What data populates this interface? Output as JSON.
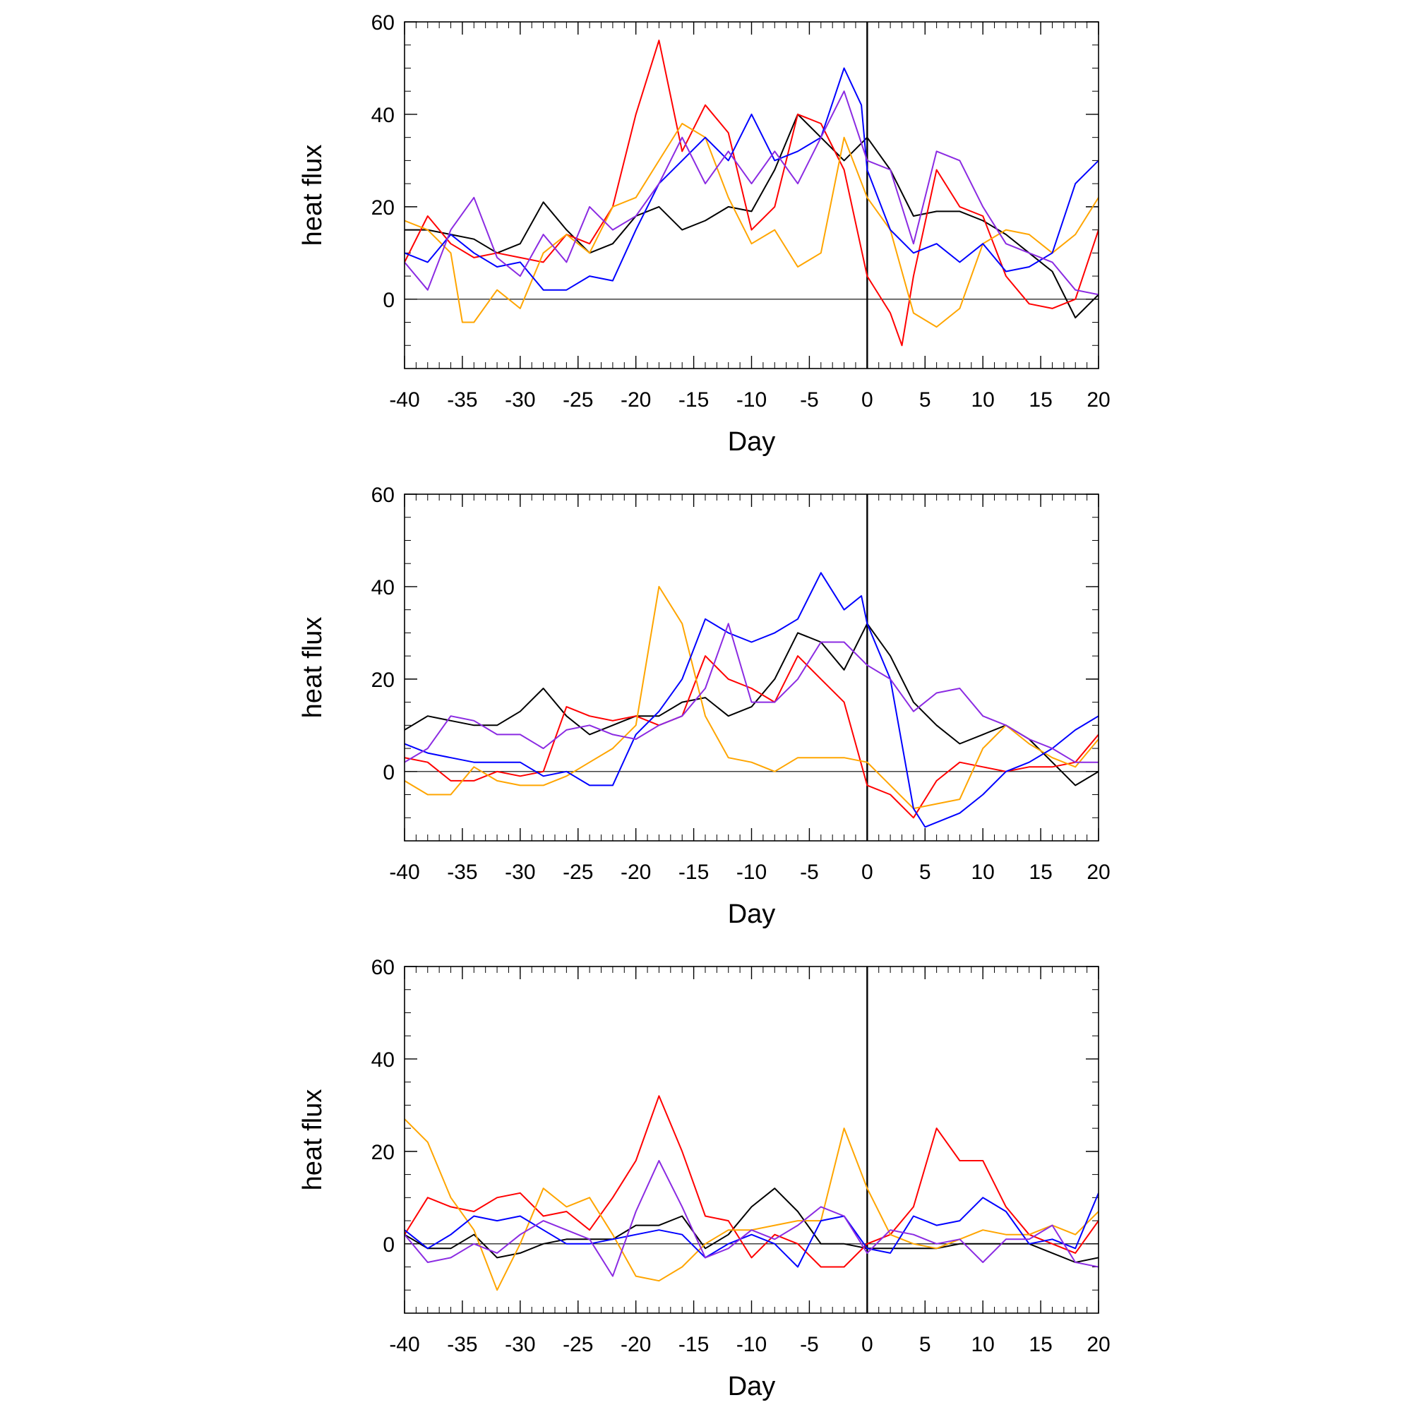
{
  "chart_data": [
    {
      "type": "line",
      "panel": "top",
      "xlabel": "Day",
      "ylabel": "heat flux",
      "xlim": [
        -40,
        20
      ],
      "ylim": [
        -15,
        60
      ],
      "xticks": [
        -40,
        -35,
        -30,
        -25,
        -20,
        -15,
        -10,
        -5,
        0,
        5,
        10,
        15,
        20
      ],
      "xtick_labels": [
        "-40",
        "-35",
        "-30",
        "-25",
        "-20",
        "-15",
        "-10",
        "-5",
        "0",
        "5",
        "10",
        "15",
        "20"
      ],
      "yticks": [
        0,
        20,
        40,
        60
      ],
      "ytick_labels": [
        "0",
        "20",
        "40",
        "60"
      ],
      "reference_lines": {
        "y": 0,
        "x": 0
      },
      "grid": false,
      "series": [
        {
          "color": "#000000",
          "x": [
            -40,
            -38,
            -36,
            -34,
            -32,
            -30,
            -28,
            -26,
            -24,
            -22,
            -20,
            -18,
            -16,
            -14,
            -12,
            -10,
            -8,
            -6,
            -4,
            -2,
            0,
            2,
            4,
            6,
            8,
            10,
            12,
            14,
            16,
            18,
            20
          ],
          "y": [
            15,
            15,
            14,
            13,
            10,
            12,
            21,
            15,
            10,
            12,
            18,
            20,
            15,
            17,
            20,
            19,
            28,
            40,
            35,
            30,
            35,
            28,
            18,
            19,
            19,
            17,
            14,
            10,
            6,
            -4,
            1
          ]
        },
        {
          "color": "#ff0000",
          "x": [
            -40,
            -38,
            -36,
            -34,
            -32,
            -30,
            -28,
            -26,
            -24,
            -22,
            -20,
            -18,
            -16,
            -14,
            -12,
            -10,
            -8,
            -6,
            -4,
            -2,
            0,
            2,
            3,
            4,
            6,
            8,
            10,
            12,
            14,
            16,
            18,
            20
          ],
          "y": [
            8,
            18,
            12,
            9,
            10,
            9,
            8,
            14,
            12,
            20,
            40,
            56,
            32,
            42,
            36,
            15,
            20,
            40,
            38,
            28,
            5,
            -3,
            -10,
            5,
            28,
            20,
            18,
            5,
            -1,
            -2,
            0,
            15
          ]
        },
        {
          "color": "#ffa500",
          "x": [
            -40,
            -38,
            -36,
            -35,
            -34,
            -32,
            -30,
            -28,
            -26,
            -24,
            -22,
            -20,
            -18,
            -16,
            -14,
            -12,
            -10,
            -8,
            -6,
            -4,
            -2,
            0,
            2,
            4,
            6,
            8,
            10,
            12,
            14,
            16,
            18,
            20
          ],
          "y": [
            17,
            15,
            10,
            -5,
            -5,
            2,
            -2,
            10,
            14,
            10,
            20,
            22,
            30,
            38,
            35,
            22,
            12,
            15,
            7,
            10,
            35,
            22,
            15,
            -3,
            -6,
            -2,
            12,
            15,
            14,
            10,
            14,
            22
          ]
        },
        {
          "color": "#0000ff",
          "x": [
            -40,
            -38,
            -36,
            -34,
            -32,
            -30,
            -28,
            -26,
            -24,
            -22,
            -20,
            -18,
            -16,
            -14,
            -12,
            -10,
            -8,
            -6,
            -4,
            -2,
            -0.5,
            0,
            2,
            4,
            6,
            8,
            10,
            12,
            14,
            16,
            18,
            20
          ],
          "y": [
            10,
            8,
            14,
            10,
            7,
            8,
            2,
            2,
            5,
            4,
            15,
            25,
            30,
            35,
            30,
            40,
            30,
            32,
            35,
            50,
            42,
            28,
            15,
            10,
            12,
            8,
            12,
            6,
            7,
            10,
            25,
            30
          ]
        },
        {
          "color": "#8b2be2",
          "x": [
            -40,
            -38,
            -36,
            -34,
            -32,
            -30,
            -28,
            -26,
            -24,
            -22,
            -20,
            -18,
            -16,
            -14,
            -12,
            -10,
            -8,
            -6,
            -4,
            -2,
            0,
            2,
            4,
            6,
            8,
            10,
            12,
            14,
            16,
            18,
            20
          ],
          "y": [
            8,
            2,
            15,
            22,
            9,
            5,
            14,
            8,
            20,
            15,
            18,
            25,
            35,
            25,
            32,
            25,
            32,
            25,
            35,
            45,
            30,
            28,
            12,
            32,
            30,
            20,
            12,
            10,
            8,
            2,
            1
          ]
        }
      ]
    },
    {
      "type": "line",
      "panel": "middle",
      "xlabel": "Day",
      "ylabel": "heat flux",
      "xlim": [
        -40,
        20
      ],
      "ylim": [
        -15,
        60
      ],
      "xticks": [
        -40,
        -35,
        -30,
        -25,
        -20,
        -15,
        -10,
        -5,
        0,
        5,
        10,
        15,
        20
      ],
      "xtick_labels": [
        "-40",
        "-35",
        "-30",
        "-25",
        "-20",
        "-15",
        "-10",
        "-5",
        "0",
        "5",
        "10",
        "15",
        "20"
      ],
      "yticks": [
        0,
        20,
        40,
        60
      ],
      "ytick_labels": [
        "0",
        "20",
        "40",
        "60"
      ],
      "reference_lines": {
        "y": 0,
        "x": 0
      },
      "grid": false,
      "series": [
        {
          "color": "#000000",
          "x": [
            -40,
            -38,
            -36,
            -34,
            -32,
            -30,
            -28,
            -26,
            -24,
            -22,
            -20,
            -18,
            -16,
            -14,
            -12,
            -10,
            -8,
            -6,
            -4,
            -2,
            0,
            2,
            4,
            6,
            8,
            10,
            12,
            14,
            16,
            18,
            20
          ],
          "y": [
            9,
            12,
            11,
            10,
            10,
            13,
            18,
            12,
            8,
            10,
            12,
            12,
            15,
            16,
            12,
            14,
            20,
            30,
            28,
            22,
            32,
            25,
            15,
            10,
            6,
            8,
            10,
            7,
            2,
            -3,
            0
          ]
        },
        {
          "color": "#ff0000",
          "x": [
            -40,
            -38,
            -36,
            -34,
            -32,
            -30,
            -28,
            -26,
            -24,
            -22,
            -20,
            -18,
            -16,
            -14,
            -12,
            -10,
            -8,
            -6,
            -4,
            -2,
            0,
            2,
            4,
            6,
            8,
            10,
            12,
            14,
            16,
            18,
            20
          ],
          "y": [
            3,
            2,
            -2,
            -2,
            0,
            -1,
            0,
            14,
            12,
            11,
            12,
            10,
            12,
            25,
            20,
            18,
            15,
            25,
            20,
            15,
            -3,
            -5,
            -10,
            -2,
            2,
            1,
            0,
            1,
            1,
            2,
            8
          ]
        },
        {
          "color": "#ffa500",
          "x": [
            -40,
            -38,
            -36,
            -34,
            -32,
            -30,
            -28,
            -26,
            -24,
            -22,
            -20,
            -18,
            -16,
            -14,
            -12,
            -10,
            -8,
            -6,
            -4,
            -2,
            0,
            2,
            4,
            6,
            8,
            10,
            12,
            14,
            16,
            18,
            20
          ],
          "y": [
            -2,
            -5,
            -5,
            1,
            -2,
            -3,
            -3,
            -1,
            2,
            5,
            10,
            40,
            32,
            12,
            3,
            2,
            0,
            3,
            3,
            3,
            2,
            -3,
            -8,
            -7,
            -6,
            5,
            10,
            6,
            3,
            1,
            7
          ]
        },
        {
          "color": "#0000ff",
          "x": [
            -40,
            -38,
            -36,
            -34,
            -32,
            -30,
            -28,
            -26,
            -24,
            -22,
            -20,
            -18,
            -16,
            -14,
            -12,
            -10,
            -8,
            -6,
            -4,
            -2,
            -0.5,
            0,
            2,
            4,
            5,
            8,
            10,
            12,
            14,
            16,
            18,
            20
          ],
          "y": [
            6,
            4,
            3,
            2,
            2,
            2,
            -1,
            0,
            -3,
            -3,
            8,
            13,
            20,
            33,
            30,
            28,
            30,
            33,
            43,
            35,
            38,
            32,
            20,
            -8,
            -12,
            -9,
            -5,
            0,
            2,
            5,
            9,
            12
          ]
        },
        {
          "color": "#8b2be2",
          "x": [
            -40,
            -38,
            -36,
            -34,
            -32,
            -30,
            -28,
            -26,
            -24,
            -22,
            -20,
            -18,
            -16,
            -14,
            -12,
            -10,
            -8,
            -6,
            -4,
            -2,
            0,
            2,
            4,
            6,
            8,
            10,
            12,
            14,
            16,
            18,
            20
          ],
          "y": [
            2,
            5,
            12,
            11,
            8,
            8,
            5,
            9,
            10,
            8,
            7,
            10,
            12,
            18,
            32,
            15,
            15,
            20,
            28,
            28,
            23,
            20,
            13,
            17,
            18,
            12,
            10,
            7,
            5,
            2,
            2
          ]
        }
      ]
    },
    {
      "type": "line",
      "panel": "bottom",
      "xlabel": "Day",
      "ylabel": "heat flux",
      "xlim": [
        -40,
        20
      ],
      "ylim": [
        -15,
        60
      ],
      "xticks": [
        -40,
        -35,
        -30,
        -25,
        -20,
        -15,
        -10,
        -5,
        0,
        5,
        10,
        15,
        20
      ],
      "xtick_labels": [
        "-40",
        "-35",
        "-30",
        "-25",
        "-20",
        "-15",
        "-10",
        "-5",
        "0",
        "5",
        "10",
        "15",
        "20"
      ],
      "yticks": [
        0,
        20,
        40,
        60
      ],
      "ytick_labels": [
        "0",
        "20",
        "40",
        "60"
      ],
      "reference_lines": {
        "y": 0,
        "x": 0
      },
      "grid": false,
      "series": [
        {
          "color": "#000000",
          "x": [
            -40,
            -38,
            -36,
            -34,
            -32,
            -30,
            -28,
            -26,
            -24,
            -22,
            -20,
            -18,
            -16,
            -14,
            -12,
            -10,
            -8,
            -6,
            -4,
            -2,
            0,
            2,
            4,
            6,
            8,
            10,
            12,
            14,
            16,
            18,
            20
          ],
          "y": [
            2,
            -1,
            -1,
            2,
            -3,
            -2,
            0,
            1,
            1,
            1,
            4,
            4,
            6,
            -1,
            2,
            8,
            12,
            7,
            0,
            0,
            -1,
            -1,
            -1,
            -1,
            0,
            0,
            0,
            0,
            -2,
            -4,
            -3
          ]
        },
        {
          "color": "#ff0000",
          "x": [
            -40,
            -38,
            -36,
            -34,
            -32,
            -30,
            -28,
            -26,
            -24,
            -22,
            -20,
            -18,
            -16,
            -14,
            -12,
            -10,
            -8,
            -6,
            -4,
            -2,
            0,
            2,
            4,
            6,
            8,
            10,
            12,
            14,
            16,
            18,
            20
          ],
          "y": [
            2,
            10,
            8,
            7,
            10,
            11,
            6,
            7,
            3,
            10,
            18,
            32,
            20,
            6,
            5,
            -3,
            2,
            0,
            -5,
            -5,
            0,
            2,
            8,
            25,
            18,
            18,
            8,
            2,
            0,
            -2,
            5
          ]
        },
        {
          "color": "#ffa500",
          "x": [
            -40,
            -38,
            -36,
            -34,
            -32,
            -30,
            -28,
            -26,
            -24,
            -22,
            -20,
            -18,
            -16,
            -14,
            -12,
            -10,
            -8,
            -6,
            -4,
            -2,
            0,
            2,
            4,
            6,
            8,
            10,
            12,
            14,
            16,
            18,
            20
          ],
          "y": [
            27,
            22,
            10,
            3,
            -10,
            0,
            12,
            8,
            10,
            2,
            -7,
            -8,
            -5,
            0,
            3,
            3,
            4,
            5,
            5,
            25,
            12,
            2,
            0,
            -1,
            1,
            3,
            2,
            2,
            4,
            2,
            7
          ]
        },
        {
          "color": "#0000ff",
          "x": [
            -40,
            -38,
            -36,
            -34,
            -32,
            -30,
            -28,
            -26,
            -24,
            -22,
            -20,
            -18,
            -16,
            -14,
            -12,
            -10,
            -8,
            -6,
            -4,
            -2,
            0,
            2,
            4,
            6,
            8,
            10,
            12,
            14,
            16,
            18,
            20
          ],
          "y": [
            3,
            -1,
            2,
            6,
            5,
            6,
            3,
            0,
            0,
            1,
            2,
            3,
            2,
            -3,
            0,
            2,
            0,
            -5,
            5,
            6,
            -1,
            -2,
            6,
            4,
            5,
            10,
            7,
            0,
            1,
            -1,
            11
          ]
        },
        {
          "color": "#8b2be2",
          "x": [
            -40,
            -38,
            -36,
            -34,
            -32,
            -30,
            -28,
            -26,
            -24,
            -22,
            -20,
            -18,
            -16,
            -14,
            -12,
            -10,
            -8,
            -6,
            -4,
            -2,
            0,
            2,
            4,
            6,
            8,
            10,
            12,
            14,
            16,
            18,
            20
          ],
          "y": [
            2,
            -4,
            -3,
            0,
            -2,
            2,
            5,
            3,
            1,
            -7,
            7,
            18,
            8,
            -3,
            -1,
            3,
            1,
            4,
            8,
            6,
            -2,
            3,
            2,
            0,
            1,
            -4,
            1,
            1,
            4,
            -4,
            -5
          ]
        }
      ]
    }
  ]
}
